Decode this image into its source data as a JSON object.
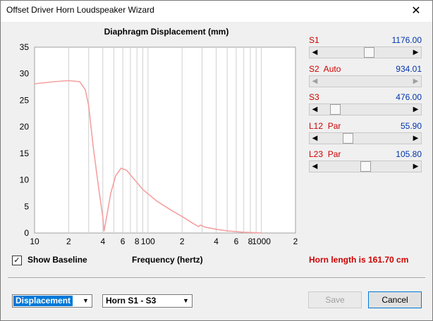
{
  "window": {
    "title": "Offset Driver Horn Loudspeaker Wizard",
    "close_glyph": "✕"
  },
  "chart_data": {
    "type": "line",
    "title": "Diaphragm Displacement (mm)",
    "xlabel": "Frequency (hertz)",
    "ylabel": "",
    "x_scale": "log",
    "xlim": [
      10,
      2000
    ],
    "ylim": [
      0,
      35
    ],
    "x_tick_labels": [
      "10",
      "2",
      "4",
      "6",
      "8",
      "100",
      "2",
      "4",
      "6",
      "8",
      "1000",
      "2"
    ],
    "y_tick_labels": [
      "0",
      "5",
      "10",
      "15",
      "20",
      "25",
      "30",
      "35"
    ],
    "grid": true,
    "series": [
      {
        "color": "#f4a0a0",
        "points": [
          [
            10,
            28.1
          ],
          [
            15,
            28.5
          ],
          [
            20,
            28.7
          ],
          [
            25,
            28.5
          ],
          [
            28,
            27
          ],
          [
            30,
            24
          ],
          [
            33,
            16
          ],
          [
            37,
            8
          ],
          [
            40,
            3
          ],
          [
            41,
            0.3
          ],
          [
            43,
            2.8
          ],
          [
            47,
            7.5
          ],
          [
            52,
            10.8
          ],
          [
            58,
            12.2
          ],
          [
            65,
            11.8
          ],
          [
            75,
            10.2
          ],
          [
            90,
            8.2
          ],
          [
            120,
            6
          ],
          [
            160,
            4.3
          ],
          [
            200,
            3.1
          ],
          [
            250,
            1.8
          ],
          [
            280,
            1.2
          ],
          [
            290,
            1.5
          ],
          [
            320,
            1.1
          ],
          [
            400,
            0.7
          ],
          [
            500,
            0.4
          ],
          [
            700,
            0.15
          ],
          [
            900,
            0.05
          ],
          [
            1000,
            0.02
          ]
        ]
      }
    ]
  },
  "controls": [
    {
      "label": "S1",
      "value": "1176.00",
      "level": 0.55,
      "disabled": false
    },
    {
      "label": "S2  Auto",
      "value": "934.01",
      "level": 0,
      "disabled": true
    },
    {
      "label": "S3",
      "value": "476.00",
      "level": 0.12,
      "disabled": false
    },
    {
      "label": "L12  Par",
      "value": "55.90",
      "level": 0.28,
      "disabled": false
    },
    {
      "label": "L23  Par",
      "value": "105.80",
      "level": 0.5,
      "disabled": false
    }
  ],
  "show_baseline": {
    "label": "Show Baseline",
    "checked": true,
    "check_glyph": "✓"
  },
  "horn_length": "Horn length is 161.70 cm",
  "footer": {
    "view_select": "Displacement",
    "horn_select": "Horn S1 - S3",
    "save_label": "Save",
    "cancel_label": "Cancel",
    "dropdown_glyph": "▼"
  },
  "colors": {
    "accent_red": "#cc0000",
    "value_blue": "#0033aa",
    "curve": "#f4a0a0",
    "select_highlight": "#0078d7"
  }
}
